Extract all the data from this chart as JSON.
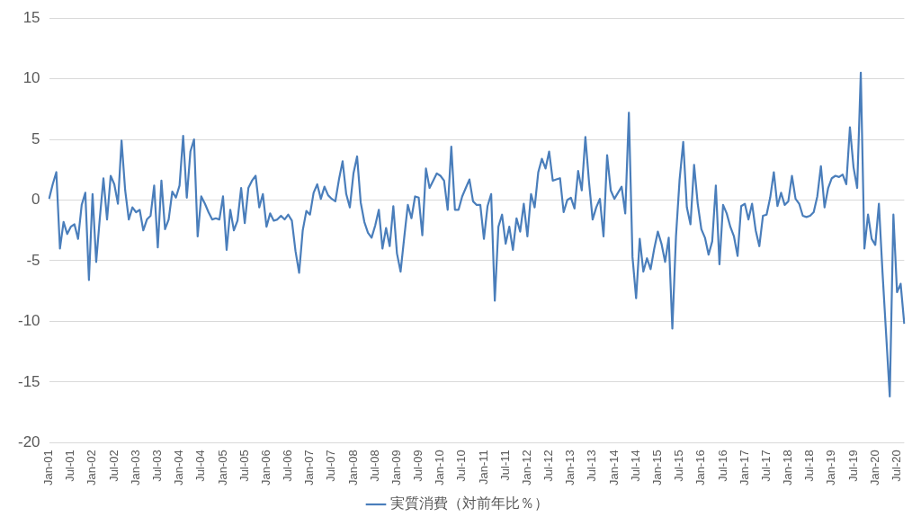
{
  "chart_data": {
    "type": "line",
    "categories": [
      "Jan-01",
      null,
      null,
      null,
      null,
      null,
      "Jul-01",
      null,
      null,
      null,
      null,
      null,
      "Jan-02",
      null,
      null,
      null,
      null,
      null,
      "Jul-02",
      null,
      null,
      null,
      null,
      null,
      "Jan-03",
      null,
      null,
      null,
      null,
      null,
      "Jul-03",
      null,
      null,
      null,
      null,
      null,
      "Jan-04",
      null,
      null,
      null,
      null,
      null,
      "Jul-04",
      null,
      null,
      null,
      null,
      null,
      "Jan-05",
      null,
      null,
      null,
      null,
      null,
      "Jul-05",
      null,
      null,
      null,
      null,
      null,
      "Jan-06",
      null,
      null,
      null,
      null,
      null,
      "Jul-06",
      null,
      null,
      null,
      null,
      null,
      "Jan-07",
      null,
      null,
      null,
      null,
      null,
      "Jul-07",
      null,
      null,
      null,
      null,
      null,
      "Jan-08",
      null,
      null,
      null,
      null,
      null,
      "Jul-08",
      null,
      null,
      null,
      null,
      null,
      "Jan-09",
      null,
      null,
      null,
      null,
      null,
      "Jul-09",
      null,
      null,
      null,
      null,
      null,
      "Jan-10",
      null,
      null,
      null,
      null,
      null,
      "Jul-10",
      null,
      null,
      null,
      null,
      null,
      "Jan-11",
      null,
      null,
      null,
      null,
      null,
      "Jul-11",
      null,
      null,
      null,
      null,
      null,
      "Jan-12",
      null,
      null,
      null,
      null,
      null,
      "Jul-12",
      null,
      null,
      null,
      null,
      null,
      "Jan-13",
      null,
      null,
      null,
      null,
      null,
      "Jul-13",
      null,
      null,
      null,
      null,
      null,
      "Jan-14",
      null,
      null,
      null,
      null,
      null,
      "Jul-14",
      null,
      null,
      null,
      null,
      null,
      "Jan-15",
      null,
      null,
      null,
      null,
      null,
      "Jul-15",
      null,
      null,
      null,
      null,
      null,
      "Jan-16",
      null,
      null,
      null,
      null,
      null,
      "Jul-16",
      null,
      null,
      null,
      null,
      null,
      "Jan-17",
      null,
      null,
      null,
      null,
      null,
      "Jul-17",
      null,
      null,
      null,
      null,
      null,
      "Jan-18",
      null,
      null,
      null,
      null,
      null,
      "Jul-18",
      null,
      null,
      null,
      null,
      null,
      "Jan-19",
      null,
      null,
      null,
      null,
      null,
      "Jul-19",
      null,
      null,
      null,
      null,
      null,
      "Jan-20",
      null,
      null,
      null,
      null,
      null,
      "Jul-20",
      null,
      null
    ],
    "series": [
      {
        "name": "実質消費（対前年比％）",
        "color": "#4a7ebb",
        "values": [
          0.1,
          1.3,
          2.3,
          -4.0,
          -1.8,
          -2.8,
          -2.2,
          -2.0,
          -3.2,
          -0.4,
          0.6,
          -6.6,
          0.5,
          -5.1,
          -1.5,
          1.8,
          -1.6,
          2.0,
          1.3,
          -0.3,
          4.9,
          0.8,
          -1.6,
          -0.6,
          -1.0,
          -0.8,
          -2.5,
          -1.6,
          -1.3,
          1.2,
          -3.9,
          1.6,
          -2.4,
          -1.6,
          0.7,
          0.2,
          1.2,
          5.3,
          0.2,
          4.0,
          5.0,
          -3.0,
          0.3,
          -0.3,
          -1.0,
          -1.6,
          -1.5,
          -1.6,
          0.3,
          -4.1,
          -0.8,
          -2.5,
          -1.7,
          1.0,
          -1.9,
          1.0,
          1.6,
          2.0,
          -0.6,
          0.5,
          -2.2,
          -1.1,
          -1.7,
          -1.6,
          -1.3,
          -1.6,
          -1.2,
          -1.7,
          -4.2,
          -6.0,
          -2.5,
          -0.9,
          -1.2,
          0.6,
          1.3,
          0.1,
          1.1,
          0.4,
          0.1,
          -0.1,
          1.7,
          3.2,
          0.5,
          -0.6,
          2.2,
          3.6,
          -0.2,
          -1.8,
          -2.7,
          -3.1,
          -2.1,
          -0.8,
          -4.0,
          -2.3,
          -3.8,
          -0.5,
          -4.4,
          -5.9,
          -3.1,
          -0.4,
          -1.5,
          0.3,
          0.2,
          -2.9,
          2.6,
          1.0,
          1.6,
          2.2,
          2.0,
          1.6,
          -0.8,
          4.4,
          -0.8,
          -0.8,
          0.3,
          1.0,
          1.7,
          -0.1,
          -0.4,
          -0.4,
          -3.2,
          -0.5,
          0.5,
          -8.3,
          -2.2,
          -1.2,
          -3.6,
          -2.2,
          -4.1,
          -1.5,
          -2.6,
          -0.3,
          -3.0,
          0.5,
          -0.6,
          2.3,
          3.4,
          2.6,
          4.0,
          1.6,
          1.7,
          1.8,
          -1.0,
          0.0,
          0.2,
          -0.7,
          2.4,
          0.8,
          5.2,
          1.5,
          -1.6,
          -0.6,
          0.1,
          -3.0,
          3.7,
          0.8,
          0.1,
          0.6,
          1.1,
          -1.1,
          7.2,
          -4.7,
          -8.1,
          -3.2,
          -5.9,
          -4.8,
          -5.7,
          -4.0,
          -2.6,
          -3.6,
          -5.1,
          -3.1,
          -10.6,
          -3.0,
          1.7,
          4.8,
          -0.6,
          -2.0,
          2.9,
          -0.3,
          -2.4,
          -3.1,
          -4.5,
          -3.4,
          1.2,
          -5.3,
          -0.4,
          -1.1,
          -2.2,
          -3.0,
          -4.6,
          -0.5,
          -0.3,
          -1.6,
          -0.3,
          -2.5,
          -3.8,
          -1.3,
          -1.2,
          0.2,
          2.3,
          -0.5,
          0.6,
          -0.4,
          -0.1,
          2.0,
          0.1,
          -0.3,
          -1.3,
          -1.4,
          -1.3,
          -1.0,
          0.3,
          2.8,
          -0.6,
          1.0,
          1.8,
          2.0,
          1.9,
          2.1,
          1.3,
          6.0,
          2.7,
          1.0,
          10.5,
          -4.0,
          -1.2,
          -3.2,
          -3.7,
          -0.3,
          -6.0,
          -11.1,
          -16.2,
          -1.2,
          -7.6,
          -6.9,
          -10.2
        ]
      }
    ],
    "ylim": [
      -20,
      15
    ],
    "yticks": [
      -20,
      -15,
      -10,
      -5,
      0,
      5,
      10,
      15
    ],
    "grid": "y",
    "legend": "bottom",
    "marker": "none",
    "line_style": "solid"
  }
}
